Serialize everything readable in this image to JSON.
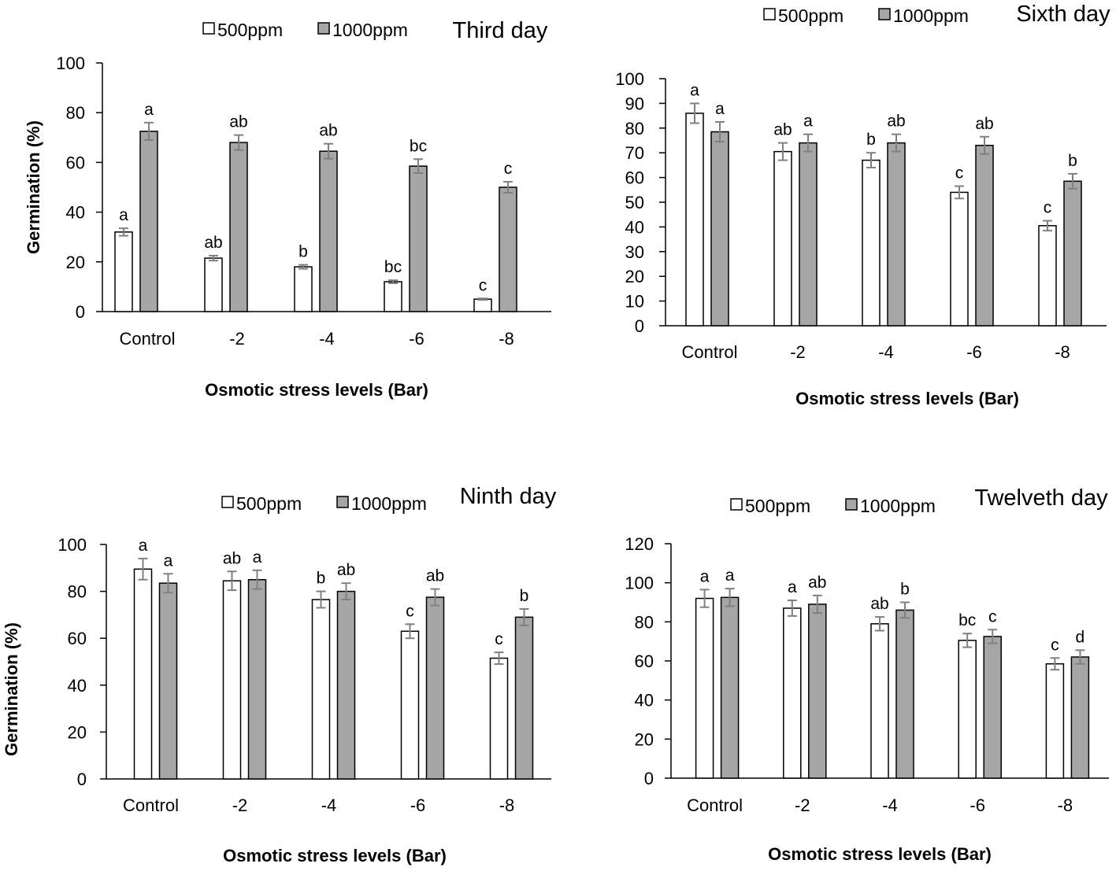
{
  "colors": {
    "series_a": "#ffffff",
    "series_b": "#a6a6a6",
    "bar_stroke": "#000000",
    "error_bar": "#808080",
    "axis": "#000000"
  },
  "chart_data": [
    {
      "type": "bar",
      "title": "Third day",
      "xlabel": "Osmotic stress levels (Bar)",
      "ylabel": "Germination (%)",
      "categories": [
        "Control",
        "-2",
        "-4",
        "-6",
        "-8"
      ],
      "ylim": [
        0,
        100
      ],
      "yticks": [
        "0",
        "20",
        "40",
        "60",
        "80",
        "100"
      ],
      "grid": false,
      "legend_position": "top",
      "series": [
        {
          "name": "500ppm",
          "values": [
            32,
            21.5,
            18,
            12,
            5
          ],
          "errors": [
            1.5,
            1,
            0.8,
            0.6,
            0.3
          ],
          "labels": [
            "a",
            "ab",
            "b",
            "bc",
            "c"
          ]
        },
        {
          "name": "1000ppm",
          "values": [
            72.5,
            68,
            64.5,
            58.5,
            50
          ],
          "errors": [
            3.5,
            3,
            3,
            2.8,
            2.2
          ],
          "labels": [
            "a",
            "ab",
            "ab",
            "bc",
            "c"
          ]
        }
      ]
    },
    {
      "type": "bar",
      "title": "Sixth day",
      "xlabel": "Osmotic stress levels (Bar)",
      "ylabel": "",
      "categories": [
        "Control",
        "-2",
        "-4",
        "-6",
        "-8"
      ],
      "ylim": [
        0,
        100
      ],
      "yticks": [
        "0",
        "10",
        "20",
        "30",
        "40",
        "50",
        "60",
        "70",
        "80",
        "90",
        "100"
      ],
      "grid": false,
      "legend_position": "top",
      "series": [
        {
          "name": "500ppm",
          "values": [
            86,
            70.5,
            67,
            54,
            40.5
          ],
          "errors": [
            4,
            3.5,
            3,
            2.5,
            2
          ],
          "labels": [
            "a",
            "ab",
            "b",
            "c",
            "c"
          ]
        },
        {
          "name": "1000ppm",
          "values": [
            78.5,
            74,
            74,
            73,
            58.5
          ],
          "errors": [
            4,
            3.5,
            3.5,
            3.5,
            3
          ],
          "labels": [
            "a",
            "a",
            "ab",
            "ab",
            "b"
          ]
        }
      ]
    },
    {
      "type": "bar",
      "title": "Ninth day",
      "xlabel": "Osmotic stress levels (Bar)",
      "ylabel": "Germination (%)",
      "categories": [
        "Control",
        "-2",
        "-4",
        "-6",
        "-8"
      ],
      "ylim": [
        0,
        100
      ],
      "yticks": [
        "0",
        "20",
        "40",
        "60",
        "80",
        "100"
      ],
      "grid": false,
      "legend_position": "top",
      "series": [
        {
          "name": "500ppm",
          "values": [
            89.5,
            84.5,
            76.5,
            63,
            51.5
          ],
          "errors": [
            4.5,
            4,
            3.5,
            3,
            2.5
          ],
          "labels": [
            "a",
            "ab",
            "b",
            "c",
            "c"
          ]
        },
        {
          "name": "1000ppm",
          "values": [
            83.5,
            85,
            80,
            77.5,
            69
          ],
          "errors": [
            4,
            4,
            3.5,
            3.5,
            3.5
          ],
          "labels": [
            "a",
            "a",
            "ab",
            "ab",
            "b"
          ]
        }
      ]
    },
    {
      "type": "bar",
      "title": "Twelveth day",
      "xlabel": "Osmotic stress levels (Bar)",
      "ylabel": "",
      "categories": [
        "Control",
        "-2",
        "-4",
        "-6",
        "-8"
      ],
      "ylim": [
        0,
        120
      ],
      "yticks": [
        "0",
        "20",
        "40",
        "60",
        "80",
        "100",
        "120"
      ],
      "grid": false,
      "legend_position": "top",
      "series": [
        {
          "name": "500ppm",
          "values": [
            92,
            87,
            79,
            70.5,
            58.5
          ],
          "errors": [
            4.5,
            4,
            3.5,
            3.5,
            3
          ],
          "labels": [
            "a",
            "a",
            "ab",
            "bc",
            "c"
          ]
        },
        {
          "name": "1000ppm",
          "values": [
            92.5,
            89,
            86,
            72.5,
            62
          ],
          "errors": [
            4.5,
            4.5,
            4,
            3.5,
            3.5
          ],
          "labels": [
            "a",
            "ab",
            "b",
            "c",
            "d"
          ]
        }
      ]
    }
  ]
}
